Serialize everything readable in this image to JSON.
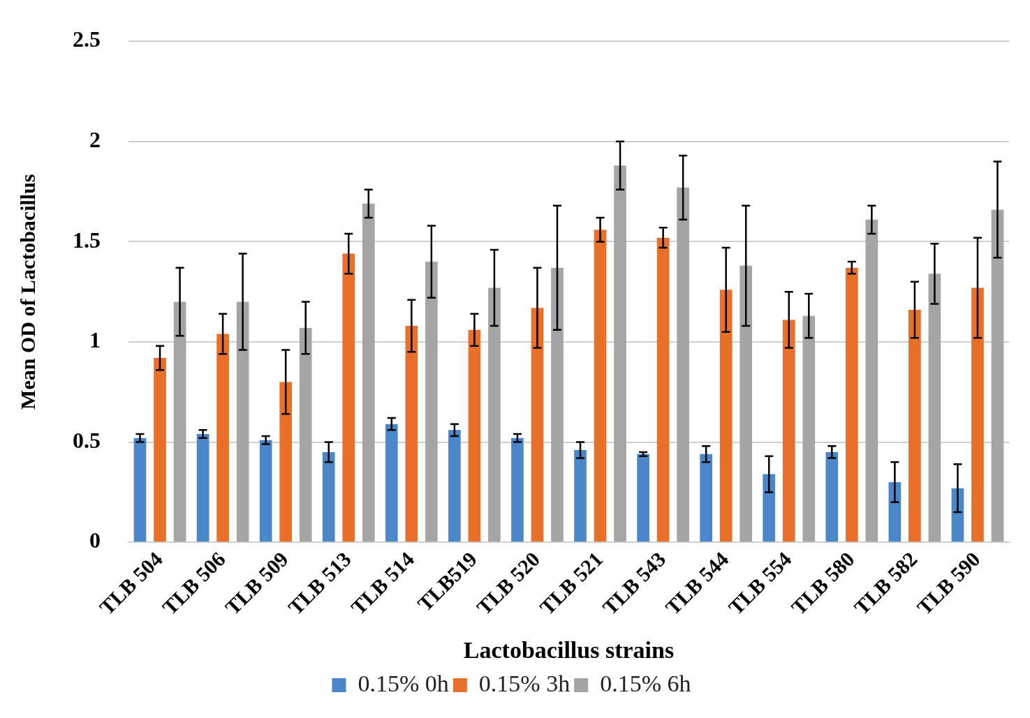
{
  "chart_data": {
    "type": "bar",
    "xlabel": "Lactobacillus strains",
    "ylabel": "Mean OD of Lactobacillus",
    "categories": [
      "TLB 504",
      "TLB 506",
      "TLB 509",
      "TLB 513",
      "TLB 514",
      "TLB519",
      "TLB 520",
      "TLB 521",
      "TLB 543",
      "TLB 544",
      "TLB 554",
      "TLB 580",
      "TLB 582",
      "TLB 590"
    ],
    "series": [
      {
        "name": "0.15% 0h",
        "color": "#4a86c8",
        "values": [
          0.52,
          0.54,
          0.51,
          0.45,
          0.59,
          0.56,
          0.52,
          0.46,
          0.44,
          0.44,
          0.34,
          0.45,
          0.3,
          0.27
        ],
        "errors": [
          0.02,
          0.02,
          0.02,
          0.05,
          0.03,
          0.03,
          0.02,
          0.04,
          0.01,
          0.04,
          0.09,
          0.03,
          0.1,
          0.12
        ]
      },
      {
        "name": "0.15% 3h",
        "color": "#e8702a",
        "values": [
          0.92,
          1.04,
          0.8,
          1.44,
          1.08,
          1.06,
          1.17,
          1.56,
          1.52,
          1.26,
          1.11,
          1.37,
          1.16,
          1.27
        ],
        "errors": [
          0.06,
          0.1,
          0.16,
          0.1,
          0.13,
          0.08,
          0.2,
          0.06,
          0.05,
          0.21,
          0.14,
          0.03,
          0.14,
          0.25
        ]
      },
      {
        "name": "0.15% 6h",
        "color": "#a5a5a5",
        "values": [
          1.2,
          1.2,
          1.07,
          1.69,
          1.4,
          1.27,
          1.37,
          1.88,
          1.77,
          1.38,
          1.13,
          1.61,
          1.34,
          1.66
        ],
        "errors": [
          0.17,
          0.24,
          0.13,
          0.07,
          0.18,
          0.19,
          0.31,
          0.12,
          0.16,
          0.3,
          0.11,
          0.07,
          0.15,
          0.24
        ]
      }
    ],
    "ylim": [
      0,
      2.5
    ],
    "yticks": [
      0,
      0.5,
      1,
      1.5,
      2,
      2.5
    ],
    "grid": "y",
    "legend": "bottom"
  }
}
